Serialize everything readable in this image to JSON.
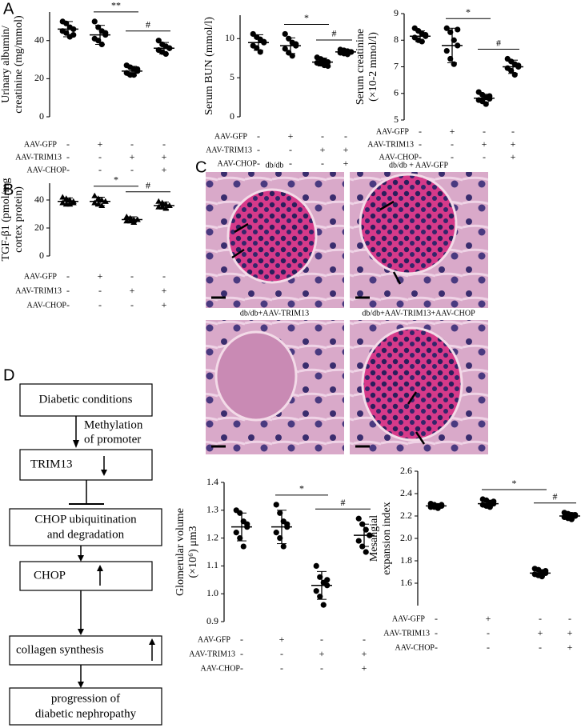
{
  "panels": [
    "A",
    "B",
    "C",
    "D"
  ],
  "chart_data": [
    {
      "type": "dotplot",
      "ylabel": [
        "Urinary albumin/",
        "creatinine (mg/mmol)"
      ],
      "ylim": [
        0,
        55
      ],
      "yticks": [
        0,
        20,
        40
      ],
      "marker": "circle",
      "values": [
        46,
        43,
        24,
        36
      ],
      "errors": [
        4,
        5,
        2.5,
        3
      ],
      "points": [
        [
          50,
          49,
          47,
          46,
          45,
          44,
          42,
          43
        ],
        [
          50,
          47,
          45,
          43,
          41,
          40,
          38,
          44
        ],
        [
          27,
          26,
          25,
          24,
          23,
          22,
          22,
          25
        ],
        [
          40,
          38,
          37,
          36,
          35,
          34,
          33,
          36
        ]
      ],
      "significance": [
        "**",
        "#"
      ],
      "treatments": [
        {
          "name": "AAV-GFP",
          "signs": [
            "-",
            "+",
            "-",
            "-"
          ]
        },
        {
          "name": "AAV-TRIM13",
          "signs": [
            "-",
            "-",
            "+",
            "+"
          ]
        },
        {
          "name": "AAV-CHOP",
          "signs": [
            "-",
            "-",
            "-",
            "+"
          ]
        }
      ]
    },
    {
      "type": "dotplot",
      "ylabel": [
        "Serum BUN (mmol/l)"
      ],
      "ylim": [
        0,
        13
      ],
      "yticks": [
        0,
        5,
        10
      ],
      "marker": "circle",
      "values": [
        9.5,
        9.1,
        7.0,
        8.3
      ],
      "errors": [
        1,
        1,
        0.5,
        0.3
      ],
      "points": [
        [
          10.6,
          10.2,
          9.9,
          9.5,
          9.1,
          8.8,
          8.3,
          9.6
        ],
        [
          10.6,
          10.0,
          9.5,
          9.1,
          8.7,
          8.2,
          7.8,
          9.3
        ],
        [
          7.6,
          7.4,
          7.2,
          7.0,
          6.9,
          6.8,
          6.6,
          6.5
        ],
        [
          8.6,
          8.5,
          8.4,
          8.3,
          8.2,
          8.1,
          8.0,
          8.3
        ]
      ],
      "significance": [
        "*",
        "#"
      ],
      "treatments": [
        {
          "name": "AAV-GFP",
          "signs": [
            "-",
            "+",
            "-",
            "-"
          ]
        },
        {
          "name": "AAV-TRIM13",
          "signs": [
            "-",
            "-",
            "+",
            "+"
          ]
        },
        {
          "name": "AAV-CHOP",
          "signs": [
            "-",
            "-",
            "-",
            "+"
          ]
        }
      ]
    },
    {
      "type": "dotplot",
      "ylabel": [
        "Serum creatinine",
        "(×10-2 mmol/l)"
      ],
      "ylim": [
        5,
        9
      ],
      "yticks": [
        5,
        6,
        7,
        8,
        9
      ],
      "marker": "circle",
      "values": [
        8.15,
        7.8,
        5.82,
        7.0
      ],
      "errors": [
        0.2,
        0.65,
        0.15,
        0.25
      ],
      "points": [
        [
          8.45,
          8.35,
          8.25,
          8.15,
          8.1,
          8.0,
          7.95,
          8.2
        ],
        [
          8.45,
          8.3,
          8.0,
          7.8,
          7.6,
          7.3,
          7.1,
          8.4
        ],
        [
          6.05,
          5.95,
          5.85,
          5.8,
          5.75,
          5.7,
          5.6,
          5.9
        ],
        [
          7.3,
          7.2,
          7.1,
          7.0,
          6.95,
          6.85,
          6.7,
          7.05
        ]
      ],
      "significance": [
        "*",
        "#"
      ],
      "treatments": [
        {
          "name": "AAV-GFP",
          "signs": [
            "-",
            "+",
            "-",
            "-"
          ]
        },
        {
          "name": "AAV-TRIM13",
          "signs": [
            "-",
            "-",
            "+",
            "+"
          ]
        },
        {
          "name": "AAV-CHOP",
          "signs": [
            "-",
            "-",
            "-",
            "+"
          ]
        }
      ]
    },
    {
      "type": "dotplot",
      "ylabel": [
        "TGF-β1 (pmol/mg",
        "cortex protein)"
      ],
      "ylim": [
        0,
        52
      ],
      "yticks": [
        0,
        20,
        40
      ],
      "marker": "triangle",
      "values": [
        39,
        39,
        26,
        36
      ],
      "errors": [
        2.5,
        3,
        2,
        2.5
      ],
      "points": [
        [
          42,
          41,
          40,
          39,
          38,
          37,
          37,
          38
        ],
        [
          43,
          41,
          40,
          39,
          38,
          37,
          36,
          39
        ],
        [
          28,
          27,
          26,
          26,
          25,
          25,
          24,
          26
        ],
        [
          39,
          38,
          37,
          36,
          35,
          35,
          34,
          36
        ]
      ],
      "significance": [
        "*",
        "#"
      ],
      "treatments": [
        {
          "name": "AAV-GFP",
          "signs": [
            "-",
            "+",
            "-",
            "-"
          ]
        },
        {
          "name": "AAV-TRIM13",
          "signs": [
            "-",
            "-",
            "+",
            "+"
          ]
        },
        {
          "name": "AAV-CHOP",
          "signs": [
            "-",
            "-",
            "-",
            "+"
          ]
        }
      ]
    },
    {
      "type": "dotplot",
      "ylabel": [
        "Glomerular volume",
        "(×10⁶) μm3"
      ],
      "ylim": [
        0.9,
        1.4
      ],
      "yticks": [
        0.9,
        {
          "value": 1.0,
          "label": "1.0"
        },
        1.1,
        1.2,
        1.3,
        1.4
      ],
      "marker": "circle",
      "values": [
        1.24,
        1.24,
        1.03,
        1.21
      ],
      "errors": [
        0.05,
        0.06,
        0.05,
        0.04
      ],
      "points": [
        [
          1.3,
          1.29,
          1.26,
          1.24,
          1.22,
          1.2,
          1.17,
          1.25
        ],
        [
          1.32,
          1.29,
          1.26,
          1.24,
          1.22,
          1.2,
          1.17,
          1.25
        ],
        [
          1.1,
          1.06,
          1.04,
          1.03,
          1.01,
          0.99,
          0.96,
          1.05
        ],
        [
          1.27,
          1.25,
          1.23,
          1.21,
          1.19,
          1.17,
          1.15,
          1.21
        ]
      ],
      "significance": [
        "*",
        "#"
      ],
      "treatments": [
        {
          "name": "AAV-GFP",
          "signs": [
            "-",
            "+",
            "-",
            "-"
          ]
        },
        {
          "name": "AAV-TRIM13",
          "signs": [
            "-",
            "-",
            "+",
            "+"
          ]
        },
        {
          "name": "AAV-CHOP",
          "signs": [
            "-",
            "-",
            "-",
            "+"
          ]
        }
      ]
    },
    {
      "type": "dotplot",
      "ylabel": [
        "Mesangial",
        "expansion index"
      ],
      "ylim": [
        1.4,
        2.6
      ],
      "yticks": [
        1.6,
        1.8,
        {
          "value": 2.0,
          "label": "2.0"
        },
        2.2,
        2.4,
        2.6
      ],
      "marker": "circle",
      "values": [
        2.29,
        2.31,
        1.69,
        2.2
      ],
      "errors": [
        0.02,
        0.03,
        0.03,
        0.03
      ],
      "points": [
        [
          2.31,
          2.3,
          2.29,
          2.29,
          2.28,
          2.28,
          2.27,
          2.3
        ],
        [
          2.35,
          2.34,
          2.32,
          2.31,
          2.3,
          2.29,
          2.28,
          2.33
        ],
        [
          1.73,
          1.72,
          1.7,
          1.69,
          1.68,
          1.67,
          1.66,
          1.71
        ],
        [
          2.23,
          2.22,
          2.21,
          2.2,
          2.19,
          2.18,
          2.17,
          2.21
        ]
      ],
      "significance": [
        "*",
        "#"
      ],
      "treatments": [
        {
          "name": "AAV-GFP",
          "signs": [
            "-",
            "+",
            "-",
            "-"
          ]
        },
        {
          "name": "AAV-TRIM13",
          "signs": [
            "-",
            "-",
            "+",
            "+"
          ]
        },
        {
          "name": "AAV-CHOP",
          "signs": [
            "-",
            "-",
            "-",
            "+"
          ]
        }
      ]
    }
  ],
  "micrographs": [
    "db/db",
    "db/db + AAV-GFP",
    "db/db+AAV-TRIM13",
    "db/db+AAV-TRIM13+AAV-CHOP"
  ],
  "diagram": {
    "nodes": [
      [
        "Diabetic conditions"
      ],
      [
        "TRIM13"
      ],
      [
        "CHOP ubiquitination",
        "and degradation"
      ],
      [
        "CHOP"
      ],
      [
        "collagen synthesis"
      ],
      [
        "progression of",
        "diabetic nephropathy"
      ]
    ],
    "edge_label": [
      "Methylation",
      "of promoter"
    ]
  }
}
